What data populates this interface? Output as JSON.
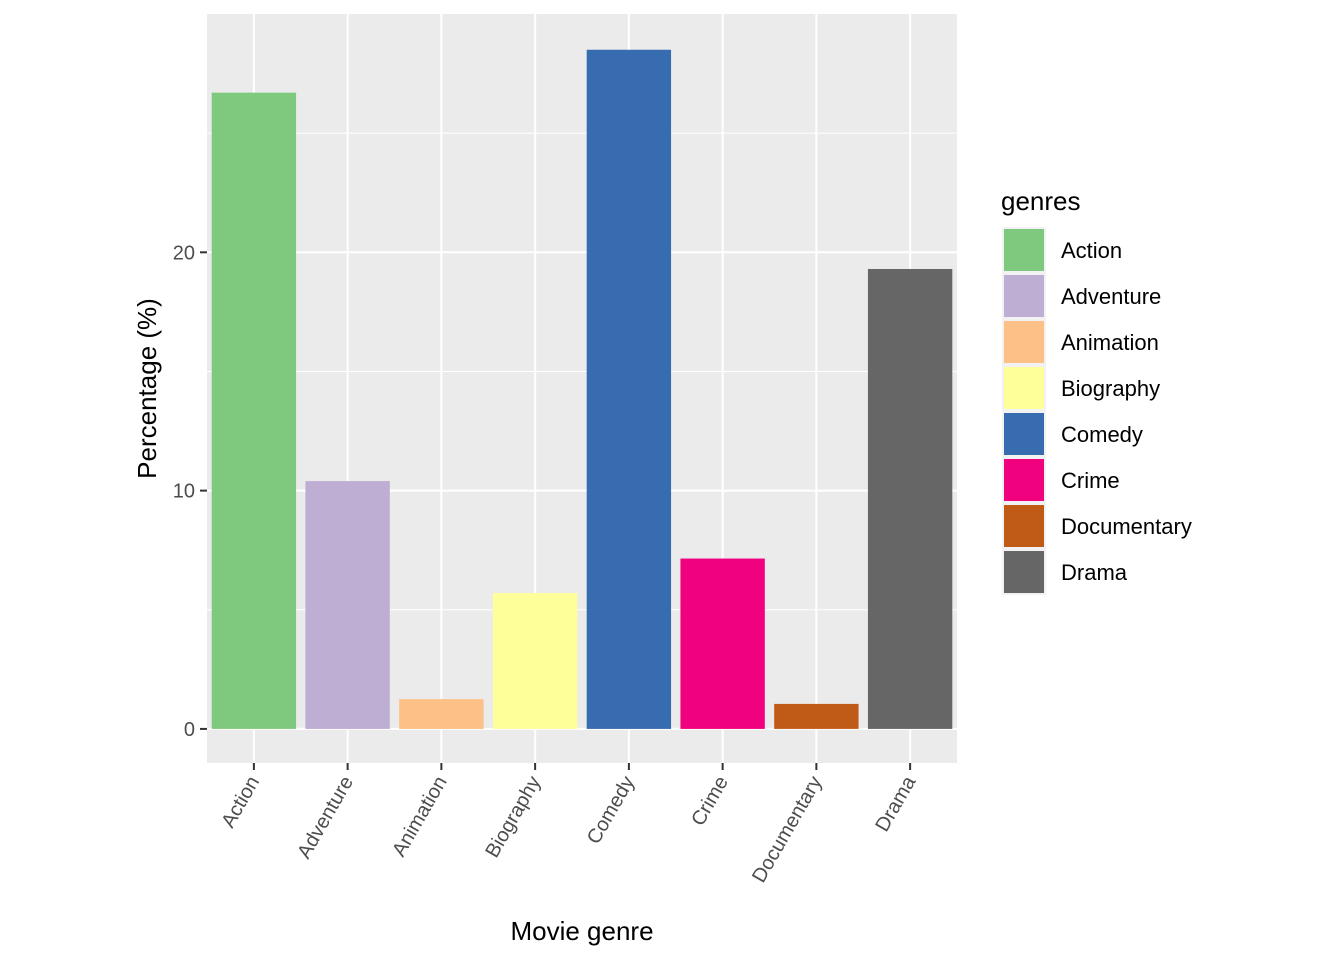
{
  "chart_data": {
    "type": "bar",
    "categories": [
      "Action",
      "Adventure",
      "Animation",
      "Biography",
      "Comedy",
      "Crime",
      "Documentary",
      "Drama"
    ],
    "values": [
      26.7,
      10.4,
      1.25,
      5.7,
      28.5,
      7.15,
      1.05,
      19.3
    ],
    "colors": [
      "#7FC97F",
      "#BEAED4",
      "#FDC086",
      "#FFFF99",
      "#386CB0",
      "#F0027F",
      "#BF5B17",
      "#666666"
    ],
    "xlabel": "Movie genre",
    "ylabel": "Percentage (%)",
    "ylim": [
      -1.43,
      30
    ],
    "yticks": [
      0,
      10,
      20
    ],
    "ytick_labels": [
      "0",
      "10",
      "20"
    ],
    "grid": true,
    "legend": {
      "title": "genres",
      "position": "right",
      "entries": [
        "Action",
        "Adventure",
        "Animation",
        "Biography",
        "Comedy",
        "Crime",
        "Documentary",
        "Drama"
      ]
    },
    "panel_background": "#EBEBEB",
    "grid_color": "#FFFFFF"
  }
}
